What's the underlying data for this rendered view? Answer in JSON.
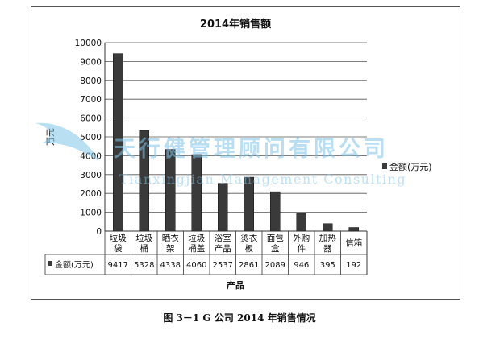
{
  "chart_data": {
    "type": "bar",
    "title": "2014年销售额",
    "xlabel": "产品",
    "ylabel": "万元",
    "ylim": [
      0,
      10000
    ],
    "yticks": [
      0,
      1000,
      2000,
      3000,
      4000,
      5000,
      6000,
      7000,
      8000,
      9000,
      10000
    ],
    "categories": [
      [
        "垃圾",
        "袋"
      ],
      [
        "垃圾",
        "桶"
      ],
      [
        "晒衣",
        "架"
      ],
      [
        "垃圾",
        "桶盖"
      ],
      [
        "浴室",
        "产品"
      ],
      [
        "烫衣",
        "板"
      ],
      [
        "面包",
        "盒"
      ],
      [
        "外购",
        "件"
      ],
      [
        "加热",
        "器"
      ],
      [
        "信箱"
      ]
    ],
    "series": [
      {
        "name": "金额(万元)",
        "table_label": "金额(万元)",
        "values": [
          9417,
          5328,
          4338,
          4060,
          2537,
          2861,
          2089,
          946,
          395,
          192
        ],
        "color": "#3a3a3a"
      }
    ],
    "grid": true,
    "legend": "right",
    "data_table": true
  },
  "caption": "图 3－1 G 公司 2014 年销售情况",
  "watermark": {
    "line1": "天行健管理顾问有限公司",
    "line2": "Tianxingjian Management Consulting",
    "color": "#7fc4ea"
  }
}
